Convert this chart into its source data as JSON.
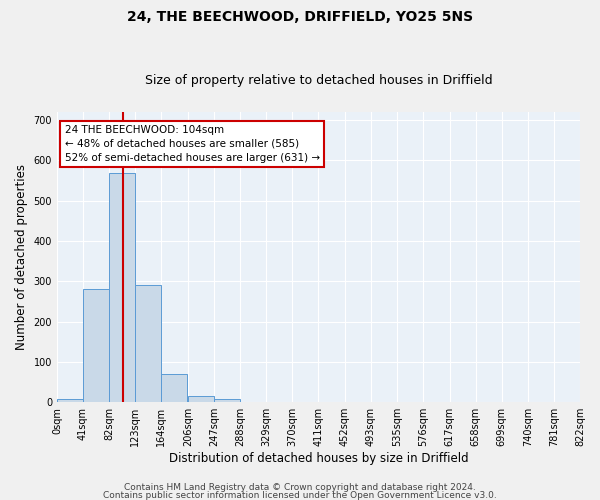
{
  "title1": "24, THE BEECHWOOD, DRIFFIELD, YO25 5NS",
  "title2": "Size of property relative to detached houses in Driffield",
  "xlabel": "Distribution of detached houses by size in Driffield",
  "ylabel": "Number of detached properties",
  "bin_edges": [
    0,
    41,
    82,
    123,
    164,
    206,
    247,
    288,
    329,
    370,
    411,
    452,
    493,
    535,
    576,
    617,
    658,
    699,
    740,
    781,
    822
  ],
  "bar_heights": [
    7,
    281,
    567,
    291,
    70,
    16,
    9,
    0,
    0,
    0,
    0,
    0,
    0,
    0,
    0,
    0,
    0,
    0,
    0,
    0
  ],
  "bar_color": "#c9d9e8",
  "bar_edge_color": "#5b9bd5",
  "property_sqm": 104,
  "vline_color": "#cc0000",
  "annotation_line1": "24 THE BEECHWOOD: 104sqm",
  "annotation_line2": "← 48% of detached houses are smaller (585)",
  "annotation_line3": "52% of semi-detached houses are larger (631) →",
  "annotation_box_color": "#ffffff",
  "annotation_box_edge": "#cc0000",
  "ylim": [
    0,
    720
  ],
  "yticks": [
    0,
    100,
    200,
    300,
    400,
    500,
    600,
    700
  ],
  "tick_labels": [
    "0sqm",
    "41sqm",
    "82sqm",
    "123sqm",
    "164sqm",
    "206sqm",
    "247sqm",
    "288sqm",
    "329sqm",
    "370sqm",
    "411sqm",
    "452sqm",
    "493sqm",
    "535sqm",
    "576sqm",
    "617sqm",
    "658sqm",
    "699sqm",
    "740sqm",
    "781sqm",
    "822sqm"
  ],
  "bg_color": "#eaf1f8",
  "grid_color": "#ffffff",
  "footer1": "Contains HM Land Registry data © Crown copyright and database right 2024.",
  "footer2": "Contains public sector information licensed under the Open Government Licence v3.0.",
  "title1_fontsize": 10,
  "title2_fontsize": 9,
  "axis_label_fontsize": 8.5,
  "tick_fontsize": 7,
  "annotation_fontsize": 7.5,
  "footer_fontsize": 6.5,
  "fig_width": 6.0,
  "fig_height": 5.0,
  "fig_dpi": 100
}
